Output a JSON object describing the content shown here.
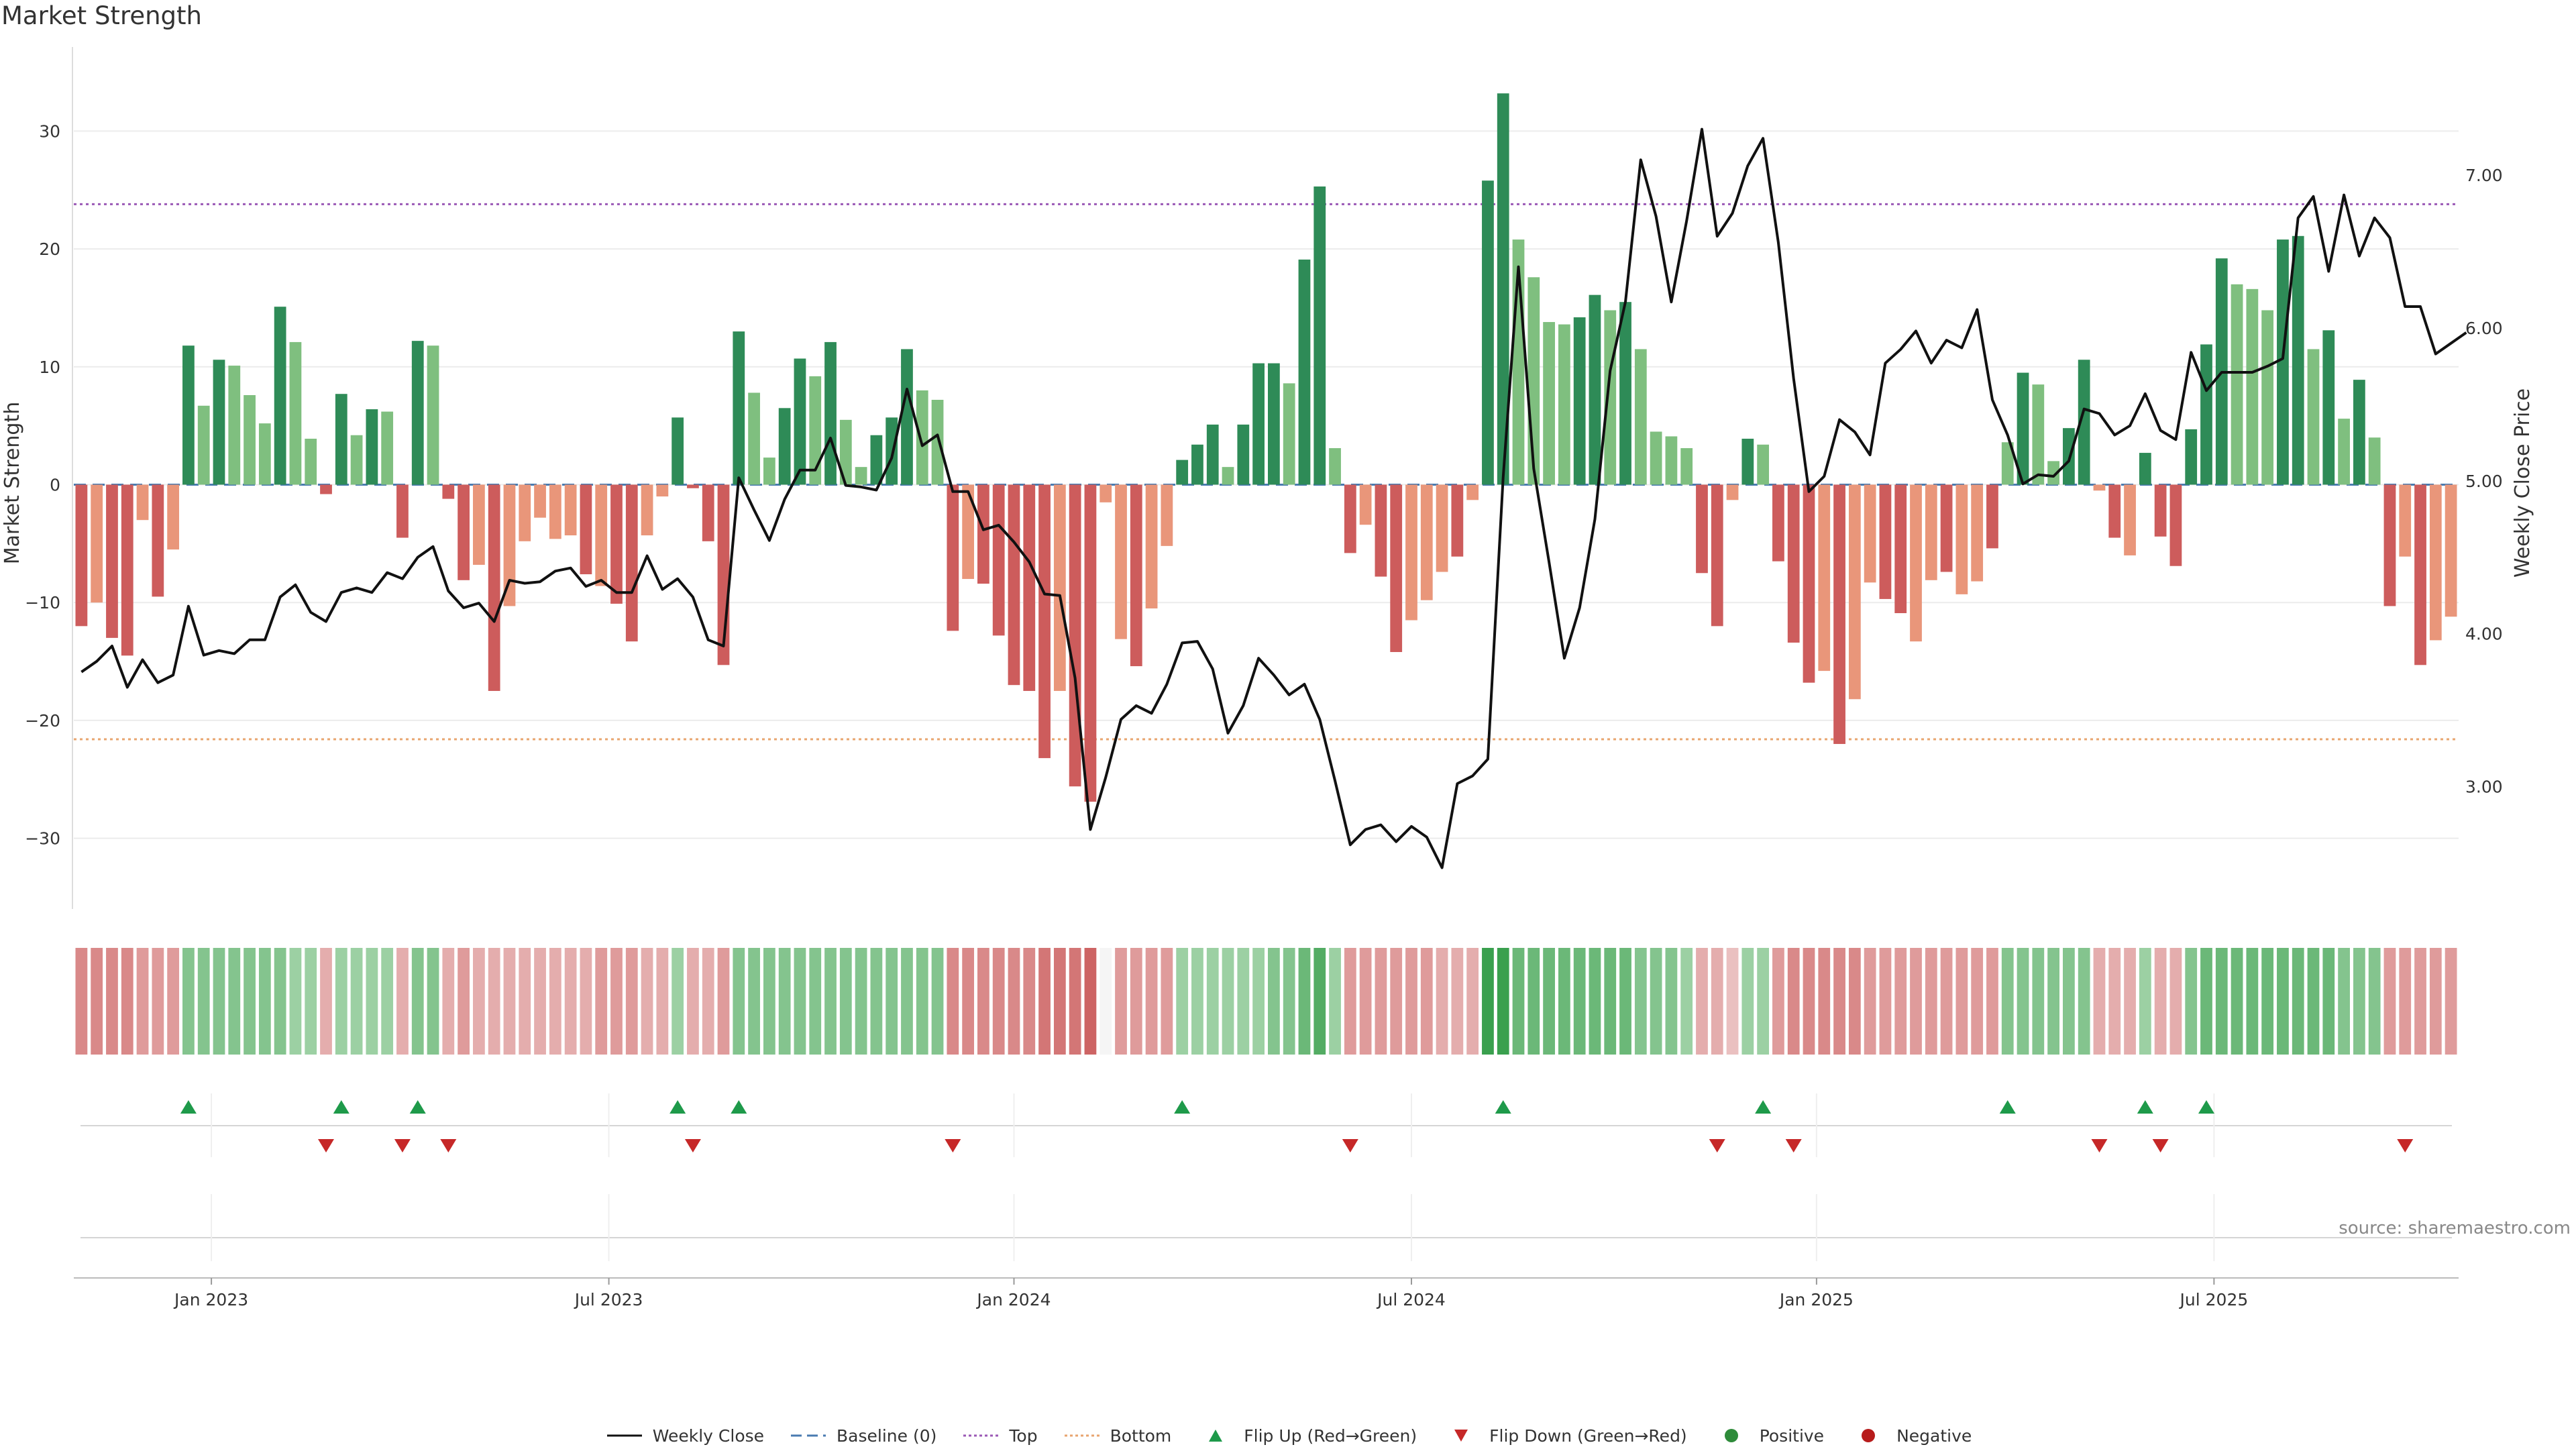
{
  "chart_data": {
    "type": "bar",
    "title": "Market Strength",
    "source": "source: sharemaestro.com",
    "ylabel_left": "Market Strength",
    "ylabel_right": "Weekly Close Price",
    "ylim_left": [
      -36,
      36
    ],
    "ylim_right": [
      2.2,
      7.75
    ],
    "left_ticks": [
      30,
      20,
      10,
      0,
      -10,
      -20,
      -30
    ],
    "left_tick_labels": [
      "30",
      "20",
      "10",
      "0",
      "−10",
      "−20",
      "−30"
    ],
    "right_ticks": [
      7,
      6,
      5,
      4,
      3
    ],
    "right_tick_labels": [
      "7.00",
      "6.00",
      "5.00",
      "4.00",
      "3.00"
    ],
    "x_ticks": [
      {
        "label": "Jan 2023",
        "week": 9
      },
      {
        "label": "Jul 2023",
        "week": 35
      },
      {
        "label": "Jan 2024",
        "week": 61.5
      },
      {
        "label": "Jul 2024",
        "week": 87.5
      },
      {
        "label": "Jan 2025",
        "week": 114
      },
      {
        "label": "Jul 2025",
        "week": 140
      }
    ],
    "top_line": 23.8,
    "bottom_line": -21.6,
    "strength": [
      -12,
      -10,
      -13,
      -14.5,
      -3,
      -9.5,
      -5.5,
      11.8,
      6.7,
      10.6,
      10.1,
      7.6,
      5.2,
      15.1,
      12.1,
      3.9,
      -0.8,
      7.7,
      4.2,
      6.4,
      6.2,
      -4.5,
      12.2,
      11.8,
      -1.2,
      -8.1,
      -6.8,
      -17.5,
      -10.3,
      -4.8,
      -2.8,
      -4.6,
      -4.3,
      -7.6,
      -8.6,
      -10.1,
      -13.3,
      -4.3,
      -1,
      5.7,
      -0.3,
      -4.8,
      -15.3,
      13,
      7.8,
      2.3,
      6.5,
      10.7,
      9.2,
      12.1,
      5.5,
      1.5,
      4.2,
      5.7,
      11.5,
      8,
      7.2,
      -12.4,
      -8,
      -8.4,
      -12.8,
      -17,
      -17.5,
      -23.2,
      -17.5,
      -25.6,
      -26.9,
      -1.5,
      -13.1,
      -15.4,
      -10.5,
      -5.2,
      2.1,
      3.4,
      5.1,
      1.5,
      5.1,
      10.3,
      10.3,
      8.6,
      19.1,
      25.3,
      3.1,
      -5.8,
      -3.4,
      -7.8,
      -14.2,
      -11.5,
      -9.8,
      -7.4,
      -6.1,
      -1.3,
      25.8,
      33.2,
      20.8,
      17.6,
      13.8,
      13.6,
      14.2,
      16.1,
      14.8,
      15.5,
      11.5,
      4.5,
      4.1,
      3.1,
      -7.5,
      -12,
      -1.3,
      3.9,
      3.4,
      -6.5,
      -13.4,
      -16.8,
      -15.8,
      -22,
      -18.2,
      -8.3,
      -9.7,
      -10.9,
      -13.3,
      -8.1,
      -7.4,
      -9.3,
      -8.2,
      -5.4,
      3.6,
      9.5,
      8.5,
      2,
      4.8,
      10.6,
      -0.5,
      -4.5,
      -6,
      2.7,
      -4.4,
      -6.9,
      4.7,
      11.9,
      19.2,
      17,
      16.6,
      14.8,
      20.8,
      21.1,
      11.5,
      13.1,
      5.6,
      8.9,
      4,
      -10.3,
      -6.1,
      -15.3,
      -13.2,
      -11.2
    ],
    "strength_intensity": [
      "strong",
      "weak",
      "strong",
      "strong",
      "weak",
      "strong",
      "weak",
      "strong",
      "weak",
      "strong",
      "weak",
      "weak",
      "weak",
      "strong",
      "weak",
      "weak",
      "strong",
      "strong",
      "weak",
      "strong",
      "weak",
      "strong",
      "strong",
      "weak",
      "strong",
      "strong",
      "weak",
      "strong",
      "weak",
      "weak",
      "weak",
      "weak",
      "weak",
      "strong",
      "weak",
      "strong",
      "strong",
      "weak",
      "weak",
      "strong",
      "strong",
      "strong",
      "strong",
      "strong",
      "weak",
      "weak",
      "strong",
      "strong",
      "weak",
      "strong",
      "weak",
      "weak",
      "strong",
      "strong",
      "strong",
      "weak",
      "weak",
      "strong",
      "weak",
      "strong",
      "strong",
      "strong",
      "strong",
      "strong",
      "weak",
      "strong",
      "strong",
      "weak",
      "weak",
      "strong",
      "weak",
      "weak",
      "strong",
      "strong",
      "strong",
      "weak",
      "strong",
      "strong",
      "strong",
      "weak",
      "strong",
      "strong",
      "weak",
      "strong",
      "weak",
      "strong",
      "strong",
      "weak",
      "weak",
      "weak",
      "strong",
      "weak",
      "strong",
      "strong",
      "weak",
      "weak",
      "weak",
      "weak",
      "strong",
      "strong",
      "weak",
      "strong",
      "weak",
      "weak",
      "weak",
      "weak",
      "strong",
      "strong",
      "weak",
      "strong",
      "weak",
      "strong",
      "strong",
      "strong",
      "weak",
      "strong",
      "weak",
      "weak",
      "strong",
      "strong",
      "weak",
      "weak",
      "strong",
      "weak",
      "weak",
      "strong",
      "weak",
      "strong",
      "weak",
      "weak",
      "strong",
      "strong",
      "weak",
      "strong",
      "weak",
      "strong",
      "strong",
      "strong",
      "strong",
      "strong",
      "strong",
      "weak",
      "weak",
      "weak",
      "strong",
      "strong",
      "weak",
      "strong",
      "weak",
      "strong",
      "weak",
      "strong",
      "weak",
      "strong",
      "weak"
    ],
    "price": [
      3.75,
      3.82,
      3.92,
      3.65,
      3.83,
      3.68,
      3.73,
      4.18,
      3.86,
      3.89,
      3.87,
      3.96,
      3.96,
      4.24,
      4.32,
      4.14,
      4.08,
      4.27,
      4.3,
      4.27,
      4.4,
      4.36,
      4.5,
      4.57,
      4.28,
      4.17,
      4.2,
      4.08,
      4.35,
      4.33,
      4.34,
      4.41,
      4.43,
      4.31,
      4.35,
      4.27,
      4.27,
      4.51,
      4.29,
      4.36,
      4.24,
      3.96,
      3.92,
      5.02,
      4.81,
      4.61,
      4.88,
      5.07,
      5.07,
      5.28,
      4.97,
      4.96,
      4.94,
      5.15,
      5.6,
      5.23,
      5.3,
      4.93,
      4.93,
      4.68,
      4.71,
      4.6,
      4.47,
      4.26,
      4.25,
      3.71,
      2.72,
      3.06,
      3.44,
      3.53,
      3.48,
      3.67,
      3.94,
      3.95,
      3.77,
      3.35,
      3.53,
      3.84,
      3.73,
      3.6,
      3.67,
      3.44,
      3.04,
      2.62,
      2.72,
      2.75,
      2.64,
      2.74,
      2.67,
      2.47,
      3.02,
      3.07,
      3.18,
      5.02,
      6.4,
      5.08,
      4.47,
      3.84,
      4.17,
      4.75,
      5.72,
      6.17,
      7.1,
      6.73,
      6.17,
      6.7,
      7.3,
      6.6,
      6.75,
      7.06,
      7.24,
      6.56,
      5.67,
      4.93,
      5.03,
      5.4,
      5.32,
      5.17,
      5.77,
      5.86,
      5.98,
      5.77,
      5.92,
      5.87,
      6.12,
      5.53,
      5.3,
      4.98,
      5.04,
      5.03,
      5.13,
      5.47,
      5.44,
      5.3,
      5.36,
      5.57,
      5.33,
      5.27,
      5.84,
      5.59,
      5.71,
      5.71,
      5.71,
      5.75,
      5.8,
      6.72,
      6.86,
      6.37,
      6.87,
      6.47,
      6.72,
      6.59,
      6.14,
      6.14,
      5.83,
      5.9,
      5.97
    ],
    "heat_strip": [
      -4,
      -4,
      -4,
      -4,
      -3,
      -3,
      -3,
      3,
      3,
      3,
      3,
      3,
      3,
      3,
      2,
      2,
      -2,
      2,
      2,
      2,
      2,
      -2,
      3,
      3,
      -2,
      -3,
      -2,
      -2,
      -2,
      -2,
      -2,
      -2,
      -2,
      -2,
      -3,
      -3,
      -3,
      -2,
      -2,
      2,
      -2,
      -2,
      -3,
      3,
      3,
      3,
      3,
      3,
      3,
      3,
      3,
      3,
      3,
      3,
      3,
      3,
      3,
      -4,
      -4,
      -4,
      -4,
      -4,
      -4,
      -5,
      -5,
      -5,
      -6,
      0,
      -3,
      -3,
      -3,
      -3,
      2,
      2,
      2,
      2,
      2,
      2,
      3,
      3,
      4,
      5,
      2,
      -3,
      -3,
      -3,
      -3,
      -3,
      -3,
      -2,
      -2,
      -2,
      6,
      6,
      4,
      4,
      4,
      4,
      4,
      4,
      4,
      4,
      3,
      3,
      3,
      2,
      -2,
      -2,
      -1,
      2,
      2,
      -3,
      -4,
      -4,
      -4,
      -4,
      -4,
      -3,
      -3,
      -3,
      -3,
      -3,
      -3,
      -3,
      -3,
      -3,
      3,
      3,
      3,
      3,
      3,
      3,
      -2,
      -2,
      -2,
      2,
      -2,
      -2,
      3,
      4,
      4,
      4,
      4,
      4,
      4,
      4,
      4,
      4,
      3,
      3,
      3,
      -3,
      -3,
      -3,
      -3,
      -3
    ],
    "flip_up_weeks": [
      7,
      17,
      22,
      39,
      43,
      72,
      93,
      110,
      126,
      135,
      139
    ],
    "flip_down_weeks": [
      16,
      21,
      24,
      40,
      57,
      83,
      107,
      112,
      132,
      136,
      152
    ],
    "legend": [
      {
        "label": "Weekly Close",
        "kind": "line-solid",
        "color": "#111111"
      },
      {
        "label": "Baseline (0)",
        "kind": "line-dash",
        "color": "#4a7bb0"
      },
      {
        "label": "Top",
        "kind": "line-dot",
        "color": "#9b59b6"
      },
      {
        "label": "Bottom",
        "kind": "line-dot",
        "color": "#e8a56f"
      },
      {
        "label": "Flip Up (Red→Green)",
        "kind": "tri-up",
        "color": "#1e9a4a"
      },
      {
        "label": "Flip Down (Green→Red)",
        "kind": "tri-down",
        "color": "#c62828"
      },
      {
        "label": "Positive",
        "kind": "dot",
        "color": "#2e8b3a"
      },
      {
        "label": "Negative",
        "kind": "dot",
        "color": "#b71c1c"
      }
    ],
    "colors": {
      "pos_strong": "#2e8b57",
      "pos_weak": "#7fbf7f",
      "neg_strong": "#cd5c5c",
      "neg_weak": "#e9967a",
      "price_line": "#111111",
      "baseline": "#4a7bb0",
      "top": "#9b59b6",
      "bottom": "#e8a56f"
    }
  }
}
